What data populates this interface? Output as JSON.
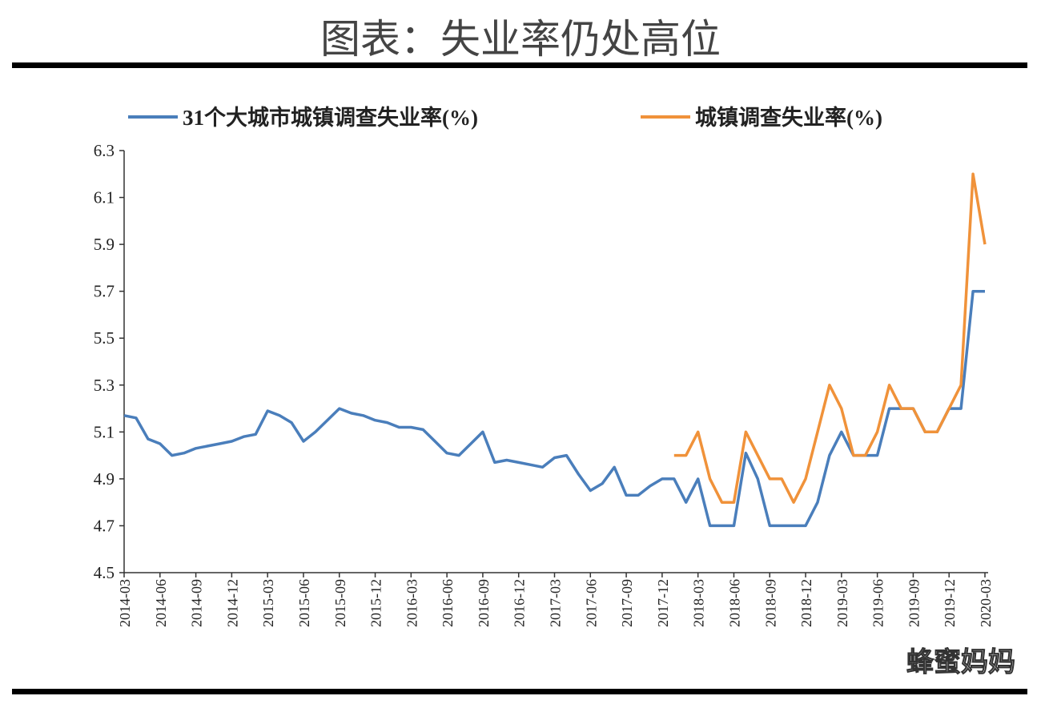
{
  "chart_data": {
    "type": "line",
    "title": "图表：失业率仍处高位",
    "watermark": "蜂蜜妈妈",
    "categories": [
      "2014-03",
      null,
      null,
      "2014-06",
      null,
      null,
      "2014-09",
      null,
      null,
      "2014-12",
      null,
      null,
      "2015-03",
      null,
      null,
      "2015-06",
      null,
      null,
      "2015-09",
      null,
      null,
      "2015-12",
      null,
      null,
      "2016-03",
      null,
      null,
      "2016-06",
      null,
      null,
      "2016-09",
      null,
      null,
      "2016-12",
      null,
      null,
      "2017-03",
      null,
      null,
      "2017-06",
      null,
      null,
      "2017-09",
      null,
      null,
      "2017-12",
      null,
      null,
      "2018-03",
      null,
      null,
      "2018-06",
      null,
      null,
      "2018-09",
      null,
      null,
      "2018-12",
      null,
      null,
      "2019-03",
      null,
      null,
      "2019-06",
      null,
      null,
      "2019-09",
      null,
      null,
      "2019-12",
      null,
      null,
      "2020-03"
    ],
    "series": [
      {
        "name": "31个大城市城镇调查失业率(%)",
        "color": "#4a7ebb",
        "values": [
          5.17,
          5.16,
          5.07,
          5.05,
          5.0,
          5.01,
          5.03,
          5.04,
          5.05,
          5.06,
          5.08,
          5.09,
          5.19,
          5.17,
          5.14,
          5.06,
          5.1,
          5.15,
          5.2,
          5.18,
          5.17,
          5.15,
          5.14,
          5.12,
          5.12,
          5.11,
          5.06,
          5.01,
          5.0,
          5.05,
          5.1,
          4.97,
          4.98,
          4.97,
          4.96,
          4.95,
          4.99,
          5.0,
          4.92,
          4.85,
          4.88,
          4.95,
          4.83,
          4.83,
          4.87,
          4.9,
          4.9,
          4.8,
          4.9,
          4.7,
          4.7,
          4.7,
          5.01,
          4.9,
          4.7,
          4.7,
          4.7,
          4.7,
          4.8,
          5.0,
          5.1,
          5.0,
          5.0,
          5.0,
          5.2,
          5.2,
          5.2,
          5.1,
          5.1,
          5.2,
          5.2,
          5.7,
          5.7
        ]
      },
      {
        "name": "城镇调查失业率(%)",
        "color": "#f0923a",
        "values": [
          null,
          null,
          null,
          null,
          null,
          null,
          null,
          null,
          null,
          null,
          null,
          null,
          null,
          null,
          null,
          null,
          null,
          null,
          null,
          null,
          null,
          null,
          null,
          null,
          null,
          null,
          null,
          null,
          null,
          null,
          null,
          null,
          null,
          null,
          null,
          null,
          null,
          null,
          null,
          null,
          null,
          null,
          null,
          null,
          null,
          null,
          5.0,
          5.0,
          5.1,
          4.9,
          4.8,
          4.8,
          5.1,
          5.0,
          4.9,
          4.9,
          4.8,
          4.9,
          5.1,
          5.3,
          5.2,
          5.0,
          5.0,
          5.1,
          5.3,
          5.2,
          5.2,
          5.1,
          5.1,
          5.2,
          5.3,
          6.2,
          5.9
        ]
      }
    ],
    "ylim": [
      4.5,
      6.3
    ],
    "yticks": [
      4.5,
      4.7,
      4.9,
      5.1,
      5.3,
      5.5,
      5.7,
      5.9,
      6.1,
      6.3
    ]
  }
}
